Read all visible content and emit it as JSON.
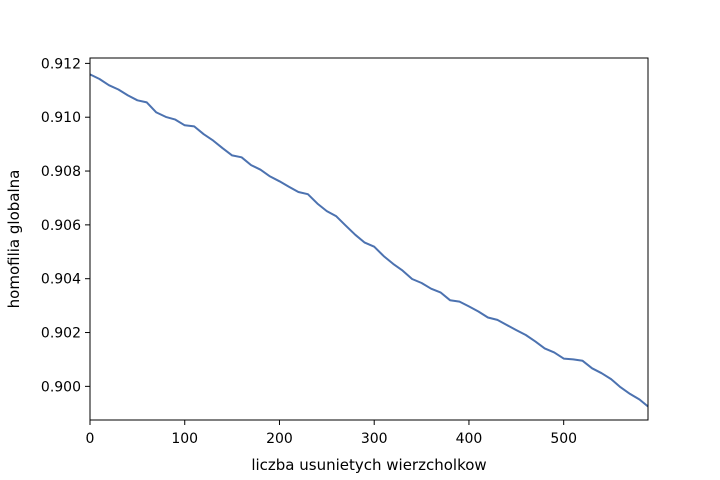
{
  "chart_data": {
    "type": "line",
    "title": "",
    "xlabel": "liczba usunietych wierzcholkow",
    "ylabel": "homofilia globalna",
    "xlim": [
      0,
      589
    ],
    "ylim": [
      0.89875,
      0.9122
    ],
    "x_ticks": [
      0,
      100,
      200,
      300,
      400,
      500
    ],
    "x_tick_labels": [
      "0",
      "100",
      "200",
      "300",
      "400",
      "500"
    ],
    "y_ticks": [
      0.9,
      0.902,
      0.904,
      0.906,
      0.908,
      0.91,
      0.912
    ],
    "y_tick_labels": [
      "0.900",
      "0.902",
      "0.904",
      "0.906",
      "0.908",
      "0.910",
      "0.912"
    ],
    "grid": false,
    "legend": "none",
    "series": [
      {
        "color": "#4c72b0",
        "x": [
          0,
          10,
          20,
          30,
          40,
          50,
          60,
          70,
          80,
          90,
          100,
          110,
          120,
          130,
          140,
          150,
          160,
          170,
          180,
          190,
          200,
          210,
          220,
          230,
          240,
          250,
          260,
          270,
          280,
          290,
          300,
          310,
          320,
          330,
          340,
          350,
          360,
          370,
          380,
          390,
          400,
          410,
          420,
          430,
          440,
          450,
          460,
          470,
          480,
          490,
          500,
          510,
          520,
          530,
          540,
          550,
          560,
          570,
          580,
          589
        ],
        "y": [
          0.91159,
          0.91142,
          0.91119,
          0.91103,
          0.91081,
          0.91063,
          0.91055,
          0.91018,
          0.91001,
          0.90991,
          0.9097,
          0.90966,
          0.90937,
          0.90913,
          0.90885,
          0.90858,
          0.90851,
          0.90822,
          0.90805,
          0.9078,
          0.90762,
          0.90742,
          0.90722,
          0.90714,
          0.90679,
          0.90651,
          0.90632,
          0.90597,
          0.90563,
          0.90534,
          0.90519,
          0.90484,
          0.90455,
          0.9043,
          0.90399,
          0.90384,
          0.90363,
          0.90349,
          0.9032,
          0.90315,
          0.90297,
          0.90278,
          0.90256,
          0.90247,
          0.90228,
          0.90209,
          0.90191,
          0.90167,
          0.90141,
          0.90126,
          0.90103,
          0.901,
          0.90095,
          0.90067,
          0.90049,
          0.90027,
          0.89997,
          0.89972,
          0.89951,
          0.89925
        ]
      }
    ]
  }
}
